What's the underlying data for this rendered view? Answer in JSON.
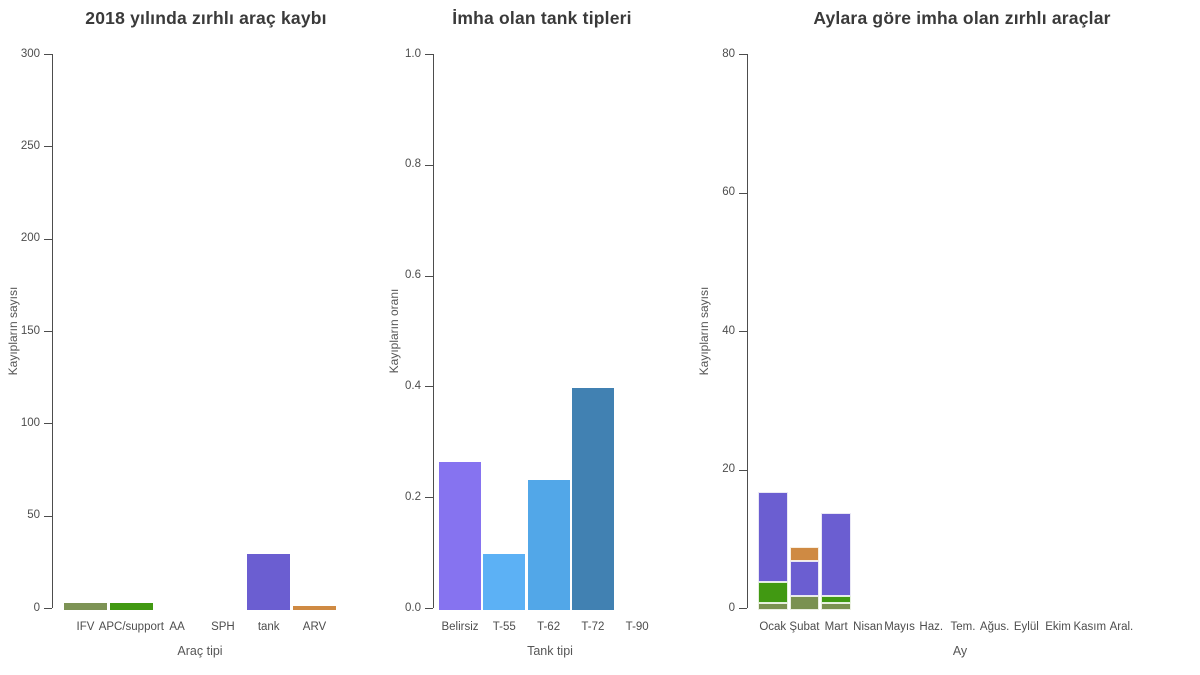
{
  "page": {
    "background": "#ffffff",
    "language": "tr"
  },
  "chart_data": [
    {
      "type": "bar",
      "title": "2018 yılında zırhlı araç kaybı",
      "xlabel": "Araç tipi",
      "ylabel": "Kayıpların sayısı",
      "ylim": [
        0,
        300
      ],
      "ytick_labels": [
        "0",
        "50",
        "100",
        "150",
        "200",
        "250",
        "300"
      ],
      "grid": false,
      "legend": null,
      "categories": [
        "IFV",
        "APC/support",
        "AA",
        "SPH",
        "tank",
        "ARV"
      ],
      "values": [
        4,
        4,
        0,
        0,
        30,
        2
      ],
      "bar_colors": [
        "#7d9355",
        "#419912",
        null,
        null,
        "#6b5ed1",
        "#cf8a43"
      ]
    },
    {
      "type": "bar",
      "title": "İmha olan tank tipleri",
      "xlabel": "Tank tipi",
      "ylabel": "Kayıpların oranı",
      "ylim": [
        0,
        1.0
      ],
      "ytick_labels": [
        "0.0",
        "0.2",
        "0.4",
        "0.6",
        "0.8",
        "1.0"
      ],
      "grid": false,
      "legend": null,
      "categories": [
        "Belirsiz",
        "T-55",
        "T-62",
        "T-72",
        "T-90"
      ],
      "values": [
        0.267,
        0.1,
        0.233,
        0.4,
        0
      ],
      "bar_colors": [
        "#8673f0",
        "#5cb1f5",
        "#52a7e8",
        "#4181b2",
        null
      ]
    },
    {
      "type": "stacked-bar",
      "title": "Aylara göre imha olan zırhlı araçlar",
      "xlabel": "Ay",
      "ylabel": "Kayıpların sayısı",
      "ylim": [
        0,
        80
      ],
      "ytick_labels": [
        "0",
        "20",
        "40",
        "60",
        "80"
      ],
      "grid": false,
      "legend": null,
      "categories": [
        "Ocak",
        "Şubat",
        "Mart",
        "Nisan",
        "Mayıs",
        "Haz.",
        "Tem.",
        "Ağus.",
        "Eylül",
        "Ekim",
        "Kasım",
        "Aral."
      ],
      "series": [
        {
          "name": "IFV",
          "color": "#7a9150",
          "values": [
            1,
            2,
            1,
            0,
            0,
            0,
            0,
            0,
            0,
            0,
            0,
            0
          ]
        },
        {
          "name": "APC/support",
          "color": "#419912",
          "values": [
            3,
            0,
            1,
            0,
            0,
            0,
            0,
            0,
            0,
            0,
            0,
            0
          ]
        },
        {
          "name": "tank",
          "color": "#6b5ed1",
          "values": [
            13,
            5,
            12,
            0,
            0,
            0,
            0,
            0,
            0,
            0,
            0,
            0
          ]
        },
        {
          "name": "ARV",
          "color": "#cf8a43",
          "values": [
            0,
            2,
            0,
            0,
            0,
            0,
            0,
            0,
            0,
            0,
            0,
            0
          ]
        }
      ]
    }
  ]
}
